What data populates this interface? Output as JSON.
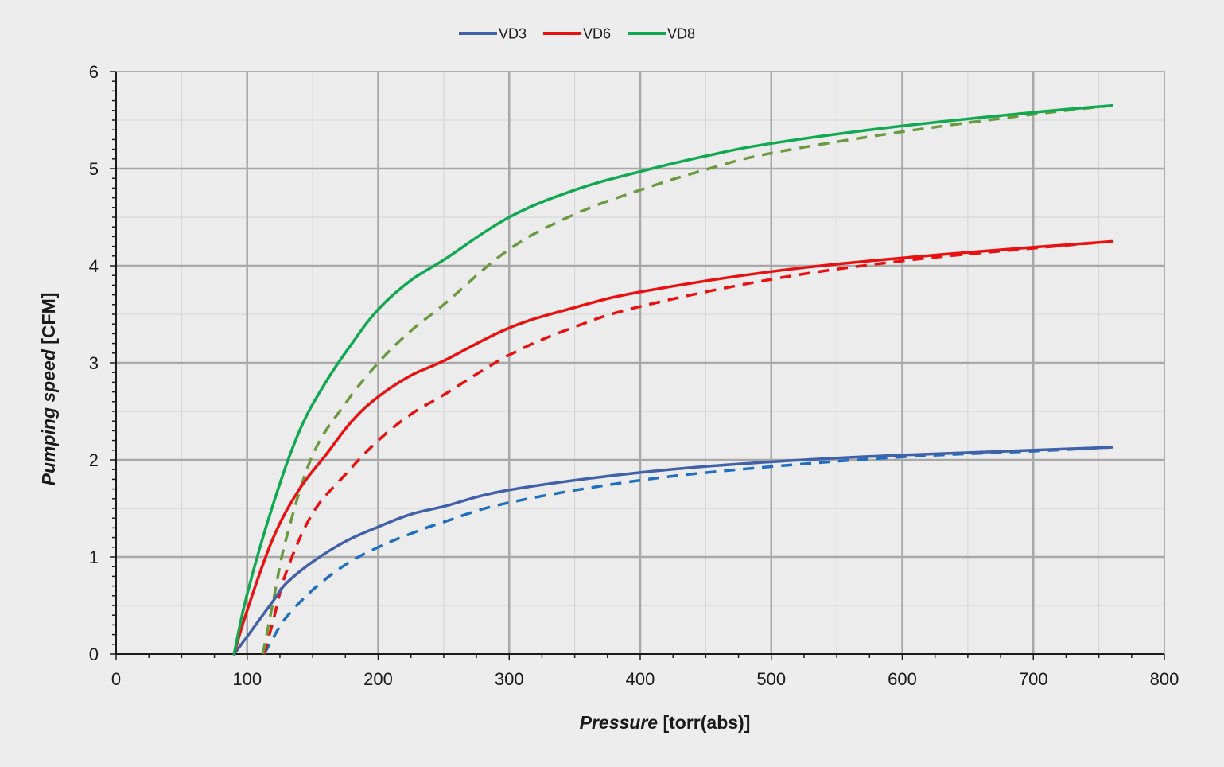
{
  "chart_data": {
    "type": "line",
    "title": "",
    "xlabel": "Pressure [torr(abs)]",
    "xlabel_parts": {
      "italic": "Pressure",
      "rest": " [torr(abs)]"
    },
    "ylabel": "Pumping speed [CFM]",
    "ylabel_parts": {
      "italic": "Pumping speed",
      "rest": " [CFM]"
    },
    "xlim": [
      0,
      800
    ],
    "ylim": [
      0,
      6
    ],
    "x_ticks": [
      0,
      100,
      200,
      300,
      400,
      500,
      600,
      700,
      800
    ],
    "y_ticks": [
      0,
      1,
      2,
      3,
      4,
      5,
      6
    ],
    "x_tick_labels": [
      "0",
      "100",
      "200",
      "300",
      "400",
      "500",
      "600",
      "700",
      "800"
    ],
    "y_tick_labels": [
      "0",
      "1",
      "2",
      "3",
      "4",
      "5",
      "6"
    ],
    "grid": true,
    "legend_position": "top-center",
    "legend": [
      {
        "label": "VD3",
        "color": "#4060a8"
      },
      {
        "label": "VD6",
        "color": "#e81010"
      },
      {
        "label": "VD8",
        "color": "#10a850"
      }
    ],
    "series": [
      {
        "name": "VD3",
        "style": "solid",
        "color": "#4060a8",
        "x": [
          90,
          100,
          120,
          130,
          150,
          175,
          200,
          225,
          250,
          300,
          400,
          500,
          600,
          700,
          760
        ],
        "y": [
          0,
          0.18,
          0.55,
          0.73,
          0.95,
          1.16,
          1.31,
          1.44,
          1.52,
          1.69,
          1.87,
          1.98,
          2.05,
          2.1,
          2.13
        ]
      },
      {
        "name": "VD6",
        "style": "solid",
        "color": "#e81010",
        "x": [
          90,
          100,
          120,
          140,
          160,
          180,
          200,
          225,
          250,
          300,
          350,
          400,
          500,
          600,
          700,
          760
        ],
        "y": [
          0,
          0.45,
          1.2,
          1.7,
          2.05,
          2.4,
          2.65,
          2.87,
          3.02,
          3.36,
          3.57,
          3.73,
          3.94,
          4.08,
          4.19,
          4.25
        ]
      },
      {
        "name": "VD8",
        "style": "solid",
        "color": "#10a850",
        "x": [
          90,
          100,
          120,
          140,
          160,
          180,
          200,
          225,
          250,
          300,
          350,
          400,
          450,
          500,
          600,
          700,
          760
        ],
        "y": [
          0,
          0.62,
          1.55,
          2.3,
          2.8,
          3.2,
          3.55,
          3.85,
          4.06,
          4.5,
          4.78,
          4.97,
          5.13,
          5.26,
          5.44,
          5.58,
          5.65
        ]
      },
      {
        "style": "dashed",
        "color": "#1f6fc0",
        "x": [
          113,
          120,
          130,
          150,
          175,
          200,
          225,
          250,
          300,
          400,
          500,
          600,
          700,
          760
        ],
        "y": [
          0,
          0.17,
          0.38,
          0.66,
          0.92,
          1.1,
          1.24,
          1.36,
          1.56,
          1.79,
          1.93,
          2.03,
          2.09,
          2.13
        ]
      },
      {
        "style": "dashed",
        "color": "#e81010",
        "x": [
          113,
          120,
          130,
          150,
          175,
          200,
          225,
          250,
          300,
          350,
          400,
          500,
          600,
          700,
          760
        ],
        "y": [
          0,
          0.35,
          0.85,
          1.45,
          1.85,
          2.2,
          2.47,
          2.67,
          3.08,
          3.37,
          3.58,
          3.86,
          4.05,
          4.18,
          4.25
        ]
      },
      {
        "style": "dashed",
        "color": "#6a9a40",
        "x": [
          112,
          120,
          130,
          150,
          175,
          200,
          225,
          250,
          300,
          350,
          400,
          450,
          500,
          600,
          700,
          760
        ],
        "y": [
          0,
          0.55,
          1.2,
          2.05,
          2.58,
          3.0,
          3.33,
          3.6,
          4.17,
          4.53,
          4.78,
          4.99,
          5.16,
          5.38,
          5.56,
          5.65
        ]
      }
    ]
  }
}
